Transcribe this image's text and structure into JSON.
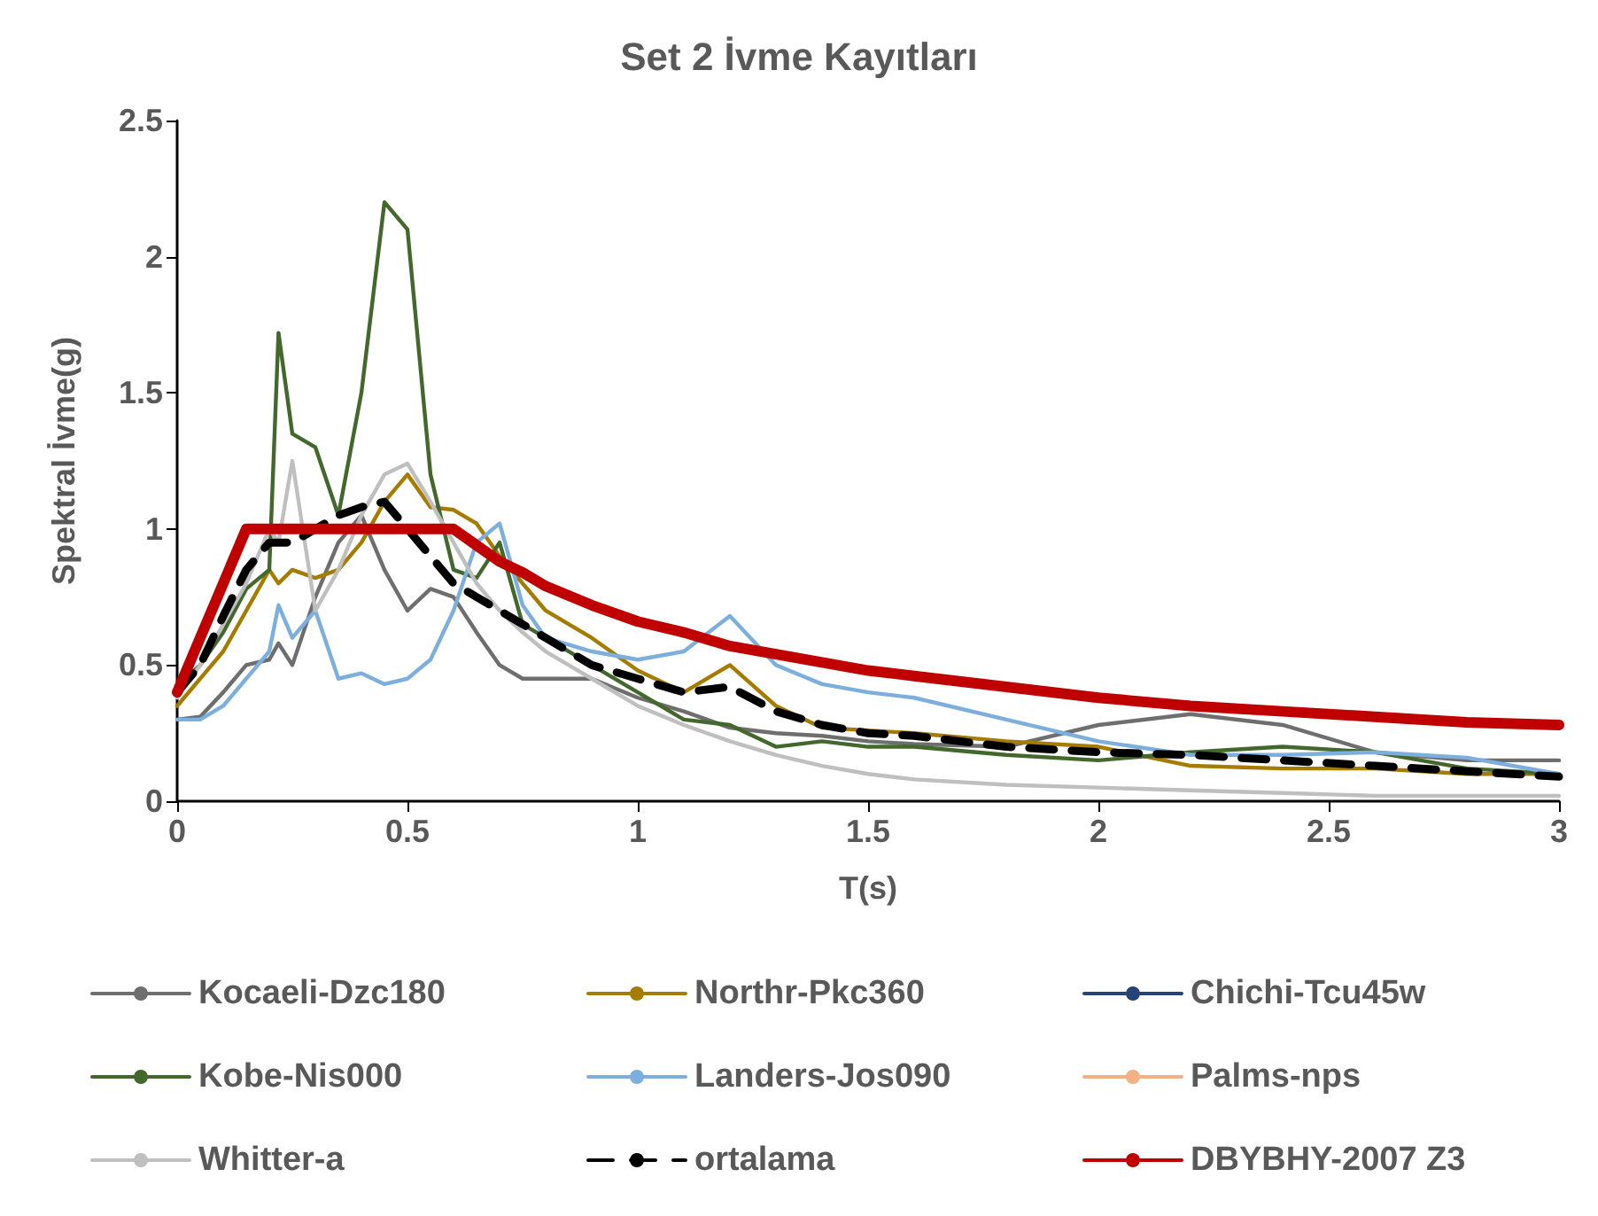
{
  "chart_data": {
    "type": "line",
    "title": "Set 2 İvme Kayıtları",
    "xlabel": "T(s)",
    "ylabel": "Spektral İvme(g)",
    "x": [
      0,
      0.05,
      0.1,
      0.15,
      0.2,
      0.22,
      0.25,
      0.3,
      0.35,
      0.4,
      0.45,
      0.5,
      0.55,
      0.6,
      0.65,
      0.7,
      0.75,
      0.8,
      0.9,
      1.0,
      1.1,
      1.2,
      1.3,
      1.4,
      1.5,
      1.6,
      1.8,
      2.0,
      2.2,
      2.4,
      2.6,
      2.8,
      3.0
    ],
    "xlim": [
      0,
      3
    ],
    "xticks": [
      0,
      0.5,
      1,
      1.5,
      2,
      2.5,
      3
    ],
    "ylim": [
      0,
      2.5
    ],
    "yticks": [
      0,
      0.5,
      1,
      1.5,
      2,
      2.5
    ],
    "grid": false,
    "legend": "bottom",
    "marker": "none",
    "series": [
      {
        "name": "Kocaeli-Dzc180",
        "color": "#6e6e6e",
        "values": [
          0.3,
          0.31,
          0.4,
          0.5,
          0.52,
          0.58,
          0.5,
          0.75,
          0.95,
          1.05,
          0.85,
          0.7,
          0.78,
          0.75,
          0.62,
          0.5,
          0.45,
          0.45,
          0.45,
          0.38,
          0.33,
          0.27,
          0.25,
          0.24,
          0.22,
          0.21,
          0.2,
          0.28,
          0.32,
          0.28,
          0.18,
          0.15,
          0.15
        ]
      },
      {
        "name": "Northr-Pkc360",
        "color": "#a57c00",
        "values": [
          0.35,
          0.45,
          0.55,
          0.7,
          0.85,
          0.8,
          0.85,
          0.82,
          0.85,
          0.95,
          1.1,
          1.2,
          1.08,
          1.07,
          1.02,
          0.9,
          0.8,
          0.7,
          0.6,
          0.48,
          0.4,
          0.5,
          0.35,
          0.27,
          0.26,
          0.25,
          0.22,
          0.2,
          0.13,
          0.12,
          0.12,
          0.1,
          0.1
        ]
      },
      {
        "name": "Chichi-Tcu45w",
        "color": "#264478",
        "values": [
          null,
          null,
          null,
          null,
          null,
          null,
          null,
          null,
          null,
          null,
          null,
          null,
          null,
          null,
          null,
          null,
          null,
          null,
          null,
          null,
          null,
          null,
          null,
          null,
          null,
          null,
          null,
          null,
          null,
          null,
          null,
          null,
          null
        ]
      },
      {
        "name": "Kobe-Nis000",
        "color": "#43682b",
        "values": [
          0.42,
          0.5,
          0.62,
          0.78,
          0.85,
          1.72,
          1.35,
          1.3,
          1.05,
          1.5,
          2.2,
          2.1,
          1.2,
          0.85,
          0.82,
          0.95,
          0.65,
          0.6,
          0.5,
          0.4,
          0.3,
          0.28,
          0.2,
          0.22,
          0.2,
          0.2,
          0.17,
          0.15,
          0.18,
          0.2,
          0.18,
          0.12,
          0.1
        ]
      },
      {
        "name": "Landers-Jos090",
        "color": "#7cafdd",
        "values": [
          0.3,
          0.3,
          0.35,
          0.45,
          0.55,
          0.72,
          0.6,
          0.7,
          0.45,
          0.47,
          0.43,
          0.45,
          0.52,
          0.7,
          0.95,
          1.02,
          0.72,
          0.6,
          0.55,
          0.52,
          0.55,
          0.68,
          0.5,
          0.43,
          0.4,
          0.38,
          0.3,
          0.22,
          0.17,
          0.17,
          0.18,
          0.16,
          0.1
        ]
      },
      {
        "name": "Palms-nps",
        "color": "#f4b183",
        "values": [
          null,
          null,
          null,
          null,
          null,
          null,
          null,
          null,
          null,
          null,
          null,
          null,
          null,
          null,
          null,
          null,
          null,
          null,
          null,
          null,
          null,
          null,
          null,
          null,
          null,
          null,
          null,
          null,
          null,
          null,
          null,
          null,
          null
        ]
      },
      {
        "name": "Whitter-a",
        "color": "#bfbfbf",
        "values": [
          0.38,
          0.5,
          0.65,
          0.8,
          1.0,
          0.95,
          1.25,
          0.7,
          0.85,
          1.05,
          1.2,
          1.24,
          1.1,
          0.95,
          0.8,
          0.7,
          0.62,
          0.55,
          0.45,
          0.35,
          0.28,
          0.22,
          0.17,
          0.13,
          0.1,
          0.08,
          0.06,
          0.05,
          0.04,
          0.03,
          0.02,
          0.02,
          0.02
        ]
      },
      {
        "name": "ortalama",
        "color": "#000000",
        "line_style": "dashed",
        "values": [
          0.4,
          0.5,
          0.68,
          0.85,
          0.95,
          0.95,
          0.95,
          1.0,
          1.05,
          1.08,
          1.1,
          1.0,
          0.9,
          0.8,
          0.75,
          0.7,
          0.65,
          0.6,
          0.5,
          0.45,
          0.4,
          0.42,
          0.33,
          0.28,
          0.25,
          0.24,
          0.2,
          0.18,
          0.17,
          0.15,
          0.13,
          0.11,
          0.09
        ]
      },
      {
        "name": "DBYBHY-2007 Z3",
        "color": "#c00000",
        "values": [
          0.4,
          0.6,
          0.8,
          1.0,
          1.0,
          1.0,
          1.0,
          1.0,
          1.0,
          1.0,
          1.0,
          1.0,
          1.0,
          1.0,
          0.94,
          0.88,
          0.84,
          0.79,
          0.72,
          0.66,
          0.62,
          0.57,
          0.54,
          0.51,
          0.48,
          0.46,
          0.42,
          0.38,
          0.35,
          0.33,
          0.31,
          0.29,
          0.28
        ]
      }
    ]
  }
}
